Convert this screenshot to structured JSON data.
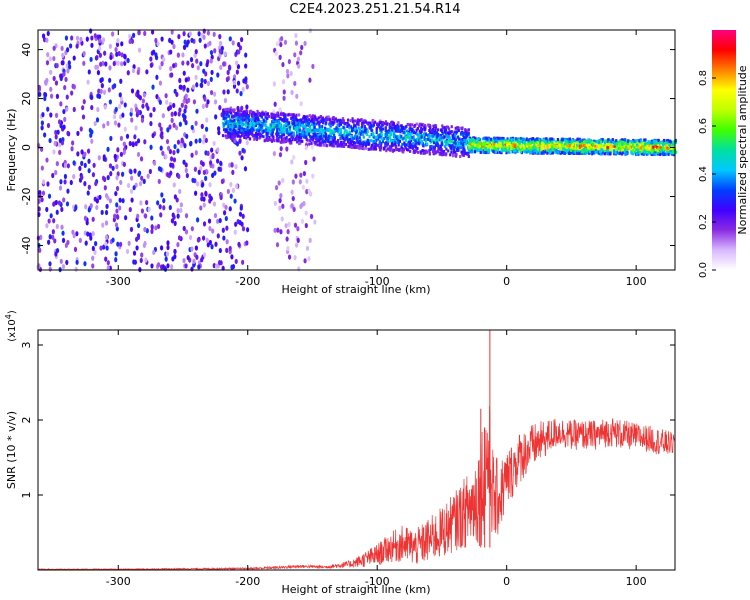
{
  "chart_data": [
    {
      "type": "heatmap",
      "title": "C2E4.2023.251.21.54.R14",
      "xlabel": "Height of straight line (km)",
      "ylabel": "Frequency (Hz)",
      "xlim": [
        -362,
        130
      ],
      "ylim": [
        -50,
        48
      ],
      "x_ticks": [
        -300,
        -200,
        -100,
        0,
        100
      ],
      "y_ticks": [
        -40,
        -20,
        0,
        20,
        40
      ],
      "colorbar": {
        "label": "Normalized spectral amplitude",
        "range": [
          0,
          1
        ],
        "ticks": [
          0.0,
          0.2,
          0.4,
          0.6,
          0.8
        ],
        "colors": [
          "#ffffff",
          "#d8b8ff",
          "#8a2be2",
          "#4000ff",
          "#0040ff",
          "#00c8ff",
          "#00e0a0",
          "#40ff00",
          "#c0ff00",
          "#ffff00",
          "#ff8000",
          "#ff0000",
          "#ff0080"
        ]
      },
      "regions": [
        {
          "kind": "noise",
          "x": [
            -362,
            -200
          ],
          "freq": [
            -50,
            48
          ],
          "amplitude": 0.25
        },
        {
          "kind": "noise",
          "x": [
            -180,
            -148
          ],
          "freq": [
            -50,
            48
          ],
          "amplitude": 0.15
        },
        {
          "kind": "band",
          "x": [
            -220,
            -30
          ],
          "center_start_hz": 10,
          "center_end_hz": 2,
          "half_width_hz": 6,
          "amplitude": 0.45
        },
        {
          "kind": "band",
          "x": [
            -30,
            130
          ],
          "center_start_hz": 1,
          "center_end_hz": 0,
          "half_width_hz": 3,
          "amplitude": 0.8
        }
      ]
    },
    {
      "type": "line",
      "xlabel": "Height of straight line (km)",
      "ylabel": "SNR (10 * v/v)",
      "y_multiplier": "(x10",
      "y_multiplier_exp": "4",
      "y_multiplier_close": ")",
      "xlim": [
        -362,
        130
      ],
      "ylim": [
        0,
        3.2
      ],
      "x_ticks": [
        -300,
        -200,
        -100,
        0,
        100
      ],
      "y_ticks": [
        1,
        2,
        3
      ],
      "color": "#ee3333",
      "x": [
        -362,
        -300,
        -250,
        -200,
        -180,
        -160,
        -140,
        -120,
        -100,
        -90,
        -80,
        -70,
        -60,
        -50,
        -40,
        -30,
        -25,
        -20,
        -15,
        -12,
        -10,
        -5,
        0,
        10,
        20,
        30,
        40,
        50,
        60,
        70,
        80,
        90,
        100,
        110,
        120,
        130
      ],
      "y": [
        0.01,
        0.01,
        0.015,
        0.02,
        0.03,
        0.05,
        0.04,
        0.08,
        0.2,
        0.3,
        0.35,
        0.3,
        0.4,
        0.5,
        0.65,
        0.8,
        0.9,
        1.1,
        1.5,
        1.3,
        0.9,
        1.0,
        1.2,
        1.5,
        1.65,
        1.75,
        1.85,
        1.8,
        1.8,
        1.8,
        1.85,
        1.8,
        1.78,
        1.75,
        1.7,
        1.68
      ],
      "noise": [
        0.005,
        0.005,
        0.008,
        0.01,
        0.02,
        0.02,
        0.02,
        0.05,
        0.15,
        0.2,
        0.25,
        0.25,
        0.3,
        0.35,
        0.4,
        0.5,
        0.6,
        0.8,
        0.9,
        0.8,
        0.6,
        0.5,
        0.4,
        0.35,
        0.3,
        0.25,
        0.2,
        0.2,
        0.2,
        0.2,
        0.2,
        0.2,
        0.18,
        0.18,
        0.18,
        0.15
      ],
      "spikes": [
        {
          "x": -13,
          "y": 3.2
        },
        {
          "x": -20,
          "y": 2.15
        },
        {
          "x": -17,
          "y": 1.9
        }
      ]
    }
  ]
}
